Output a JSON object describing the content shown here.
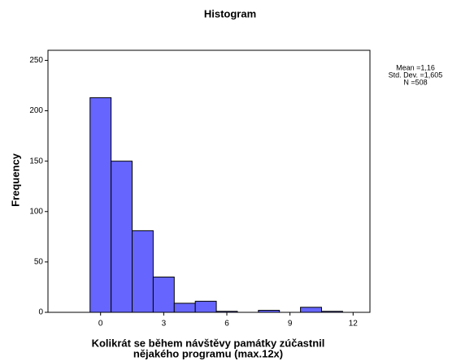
{
  "chart_data": {
    "type": "histogram",
    "title": "Histogram",
    "x_label": [
      "Kolikrát se během návštěvy památky zúčastnil",
      "nějakého programu (max.12x)"
    ],
    "y_label": "Frequency",
    "bins": [
      -0.5,
      0.5,
      1.5,
      2.5,
      3.5,
      4.5,
      5.5,
      6.5,
      7.5,
      8.5,
      9.5,
      10.5,
      11.5
    ],
    "counts": [
      213,
      150,
      81,
      35,
      9,
      11,
      1,
      0,
      2,
      0,
      5,
      1
    ],
    "color": "#6666ff",
    "xlim": [
      -2.5,
      12.8
    ],
    "xticks": [
      0,
      3,
      6,
      9,
      12
    ],
    "ylim": [
      0,
      260
    ],
    "yticks": [
      0,
      50,
      100,
      150,
      200,
      250
    ],
    "stats": [
      "Mean =1,16",
      "Std. Dev. =1,605",
      "N =508"
    ]
  }
}
